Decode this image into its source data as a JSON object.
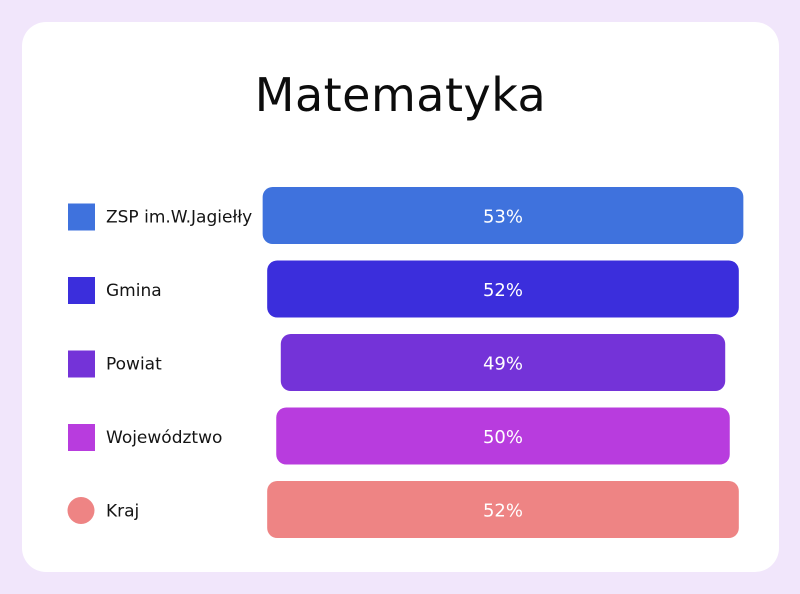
{
  "chart_data": {
    "type": "bar",
    "title": "Matematyka",
    "categories": [
      "ZSP im.W.Jagiełły",
      "Gmina",
      "Powiat",
      "Województwo",
      "Kraj"
    ],
    "values": [
      53,
      52,
      49,
      50,
      52
    ],
    "value_labels": [
      "53%",
      "52%",
      "49%",
      "50%",
      "52%"
    ],
    "colors": [
      "#3f72dd",
      "#3b2edc",
      "#7433d8",
      "#b83cde",
      "#ee8484"
    ],
    "legend_markers": [
      "square",
      "square",
      "square",
      "square",
      "circle"
    ],
    "orientation": "horizontal",
    "bar_alignment": "centered",
    "xlabel": "",
    "ylabel": "",
    "grid": false
  }
}
